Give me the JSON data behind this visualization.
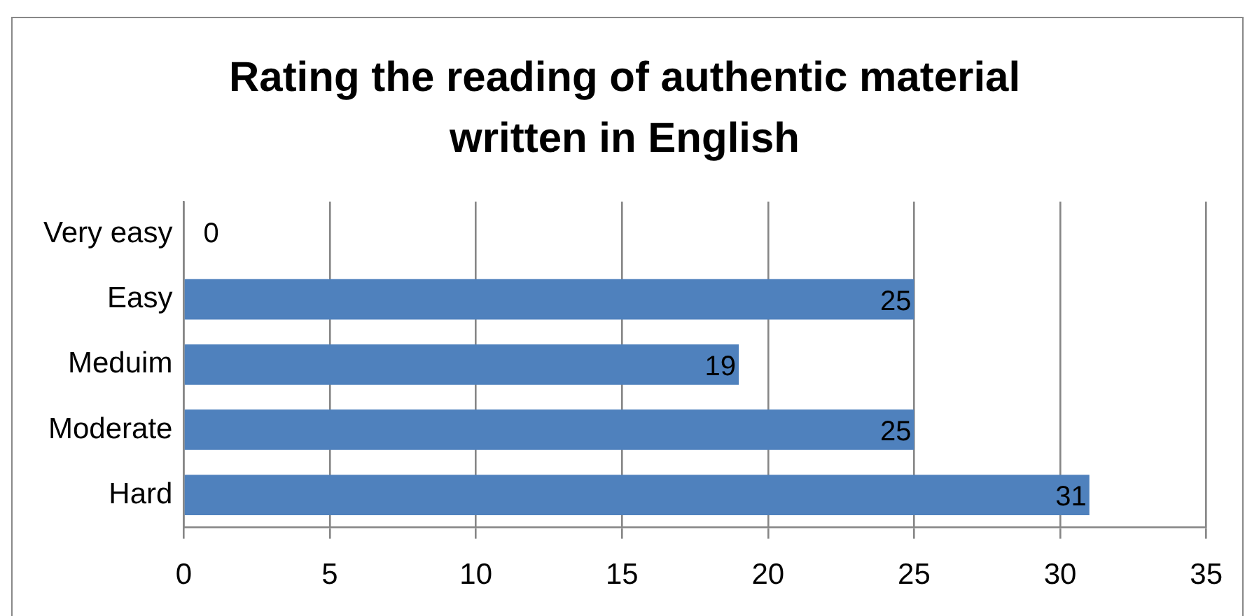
{
  "chart_data": {
    "type": "bar",
    "orientation": "horizontal",
    "title": "Rating the reading of authentic material written in English",
    "categories": [
      "Very easy",
      "Easy",
      "Meduim",
      "Moderate",
      "Hard"
    ],
    "values": [
      0,
      25,
      19,
      25,
      31
    ],
    "color": "#4f81bd",
    "xlim": [
      0,
      35
    ],
    "xticks": [
      0,
      5,
      10,
      15,
      20,
      25,
      30,
      35
    ],
    "grid": "x",
    "data_labels": true,
    "legend": false
  }
}
